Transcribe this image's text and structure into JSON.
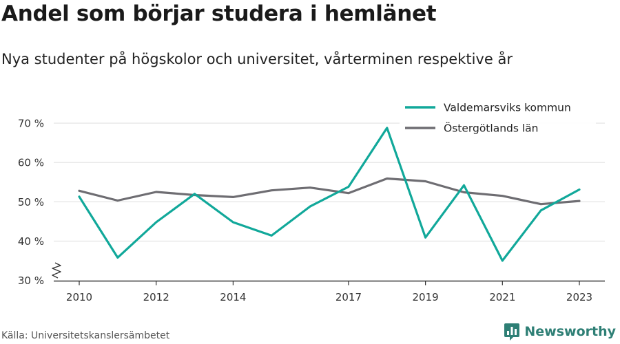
{
  "title": "Andel som börjar studera i hemlänet",
  "subtitle": "Nya studenter på högskolor och universitet, vårterminen respektive år",
  "source": "Källa: Universitetskanslersämbetet",
  "brand": "Newsworthy",
  "colors": {
    "valdemarsvik": "#11a89a",
    "ostergotland": "#6e6d72",
    "grid": "#dddddd",
    "axis": "#333333",
    "brand": "#2e7f75"
  },
  "chart_data": {
    "type": "line",
    "x": [
      2010,
      2011,
      2012,
      2013,
      2014,
      2015,
      2016,
      2017,
      2018,
      2019,
      2020,
      2021,
      2022,
      2023
    ],
    "x_ticks": [
      2010,
      2012,
      2014,
      2017,
      2019,
      2021,
      2023
    ],
    "y_ticks": [
      30,
      40,
      50,
      60,
      70
    ],
    "y_tick_labels": [
      "30 %",
      "40 %",
      "50 %",
      "60 %",
      "70 %"
    ],
    "ylim": [
      30,
      71
    ],
    "grid": true,
    "legend_position": "top-right",
    "y_axis_break": true,
    "series": [
      {
        "name": "Valdemarsviks kommun",
        "color_key": "valdemarsvik",
        "values": [
          51.3,
          35.8,
          44.8,
          52.0,
          44.8,
          41.4,
          48.8,
          53.8,
          68.8,
          40.9,
          54.2,
          35.0,
          47.8,
          53.1
        ]
      },
      {
        "name": "Östergötlands län",
        "color_key": "ostergotland",
        "values": [
          52.8,
          50.3,
          52.5,
          51.7,
          51.2,
          52.9,
          53.6,
          52.2,
          55.9,
          55.2,
          52.4,
          51.5,
          49.4,
          50.2
        ]
      }
    ]
  }
}
